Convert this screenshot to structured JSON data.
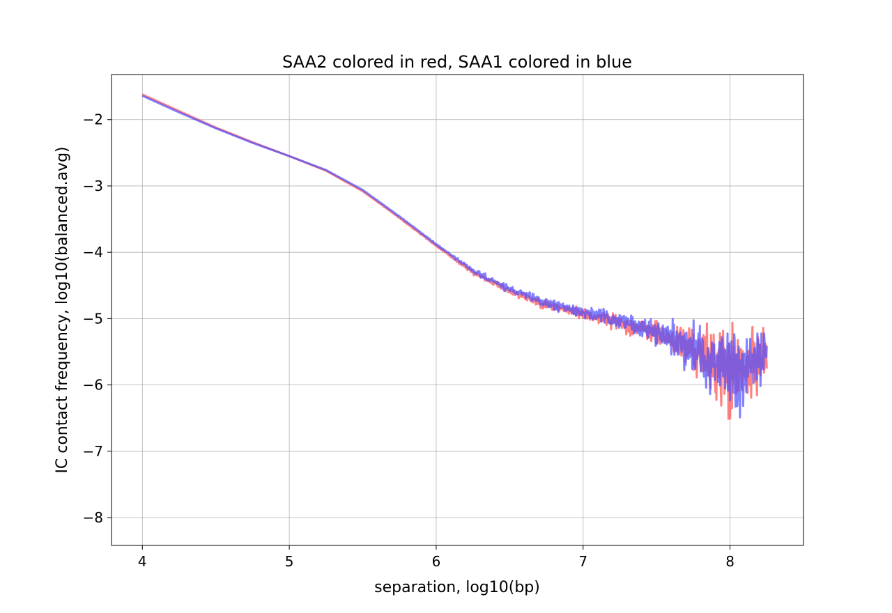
{
  "chart_data": {
    "type": "line",
    "title": "SAA2 colored in red, SAA1 colored in blue",
    "xlabel": "separation, log10(bp)",
    "ylabel": "IC contact frequency, log10(balanced.avg)",
    "xlim": [
      3.79,
      8.5
    ],
    "ylim": [
      -8.42,
      -1.32
    ],
    "xticks": [
      4,
      5,
      6,
      7,
      8
    ],
    "yticks": [
      -2,
      -3,
      -4,
      -5,
      -6,
      -7,
      -8
    ],
    "xtick_labels": [
      "4",
      "5",
      "6",
      "7",
      "8"
    ],
    "ytick_labels": [
      "−2",
      "−3",
      "−4",
      "−5",
      "−6",
      "−7",
      "−8"
    ],
    "grid": true,
    "series": [
      {
        "name": "SAA2",
        "color": "#ff4d4d",
        "opacity": 0.7,
        "x": [
          4.0,
          4.25,
          4.5,
          4.75,
          5.0,
          5.25,
          5.5,
          5.75,
          6.0,
          6.25,
          6.5,
          6.75,
          7.0,
          7.25,
          7.5,
          7.75,
          7.9,
          8.0,
          8.1,
          8.2,
          8.25
        ],
        "y": [
          -1.62,
          -1.87,
          -2.12,
          -2.34,
          -2.55,
          -2.77,
          -3.08,
          -3.48,
          -3.9,
          -4.3,
          -4.58,
          -4.79,
          -4.93,
          -5.06,
          -5.23,
          -5.47,
          -5.68,
          -5.82,
          -5.82,
          -5.62,
          -5.45
        ],
        "noise": [
          0.0,
          0.0,
          0.0,
          0.0,
          0.0,
          0.0,
          0.0,
          0.01,
          0.02,
          0.05,
          0.08,
          0.1,
          0.12,
          0.16,
          0.25,
          0.5,
          0.75,
          1.1,
          0.8,
          0.6,
          0.4
        ]
      },
      {
        "name": "SAA1",
        "color": "#4d4dff",
        "opacity": 0.7,
        "x": [
          4.0,
          4.25,
          4.5,
          4.75,
          5.0,
          5.25,
          5.5,
          5.75,
          6.0,
          6.25,
          6.5,
          6.75,
          7.0,
          7.25,
          7.5,
          7.75,
          7.9,
          8.0,
          8.1,
          8.2,
          8.25
        ],
        "y": [
          -1.64,
          -1.89,
          -2.13,
          -2.35,
          -2.55,
          -2.76,
          -3.06,
          -3.46,
          -3.88,
          -4.28,
          -4.56,
          -4.77,
          -4.9,
          -5.03,
          -5.2,
          -5.44,
          -5.66,
          -5.82,
          -5.8,
          -5.6,
          -5.45
        ],
        "noise": [
          0.0,
          0.0,
          0.0,
          0.0,
          0.0,
          0.0,
          0.0,
          0.01,
          0.02,
          0.05,
          0.08,
          0.1,
          0.12,
          0.16,
          0.25,
          0.5,
          0.75,
          1.1,
          0.8,
          0.6,
          0.4
        ]
      }
    ]
  }
}
